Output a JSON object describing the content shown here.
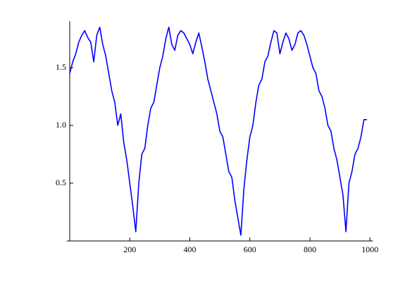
{
  "chart_data": {
    "type": "line",
    "x": [
      0,
      10,
      20,
      30,
      40,
      50,
      60,
      70,
      80,
      90,
      100,
      110,
      120,
      130,
      140,
      150,
      160,
      170,
      180,
      190,
      200,
      210,
      220,
      230,
      240,
      250,
      260,
      270,
      280,
      290,
      300,
      310,
      320,
      330,
      340,
      350,
      360,
      370,
      380,
      390,
      400,
      410,
      420,
      430,
      440,
      450,
      460,
      470,
      480,
      490,
      500,
      510,
      520,
      530,
      540,
      550,
      560,
      570,
      580,
      590,
      600,
      610,
      620,
      630,
      640,
      650,
      660,
      670,
      680,
      690,
      700,
      710,
      720,
      730,
      740,
      750,
      760,
      770,
      780,
      790,
      800,
      810,
      820,
      830,
      840,
      850,
      860,
      870,
      880,
      890,
      900,
      910,
      920,
      930,
      940,
      950,
      960,
      970,
      980,
      990
    ],
    "series": [
      {
        "color": "#0000ff",
        "values": [
          1.45,
          1.55,
          1.62,
          1.72,
          1.78,
          1.82,
          1.76,
          1.72,
          1.55,
          1.78,
          1.85,
          1.7,
          1.6,
          1.45,
          1.3,
          1.2,
          1.0,
          1.1,
          0.85,
          0.7,
          0.5,
          0.3,
          0.08,
          0.5,
          0.75,
          0.8,
          1.0,
          1.15,
          1.2,
          1.35,
          1.5,
          1.6,
          1.75,
          1.85,
          1.7,
          1.65,
          1.78,
          1.82,
          1.8,
          1.75,
          1.7,
          1.62,
          1.72,
          1.8,
          1.68,
          1.55,
          1.4,
          1.3,
          1.2,
          1.1,
          0.95,
          0.9,
          0.75,
          0.6,
          0.55,
          0.35,
          0.2,
          0.05,
          0.45,
          0.7,
          0.9,
          1.0,
          1.2,
          1.35,
          1.4,
          1.55,
          1.6,
          1.72,
          1.82,
          1.8,
          1.62,
          1.72,
          1.8,
          1.75,
          1.65,
          1.7,
          1.8,
          1.82,
          1.78,
          1.7,
          1.6,
          1.5,
          1.45,
          1.3,
          1.25,
          1.15,
          1.0,
          0.95,
          0.8,
          0.7,
          0.55,
          0.4,
          0.08,
          0.5,
          0.6,
          0.75,
          0.8,
          0.9,
          1.05,
          1.05
        ]
      }
    ],
    "xlim": [
      -10,
      1010
    ],
    "ylim": [
      0,
      1.9
    ],
    "xticks": [
      200,
      400,
      600,
      800,
      1000
    ],
    "yticks": [
      0.5,
      {
        "value": 1,
        "label": "1.0"
      },
      1.5
    ]
  }
}
